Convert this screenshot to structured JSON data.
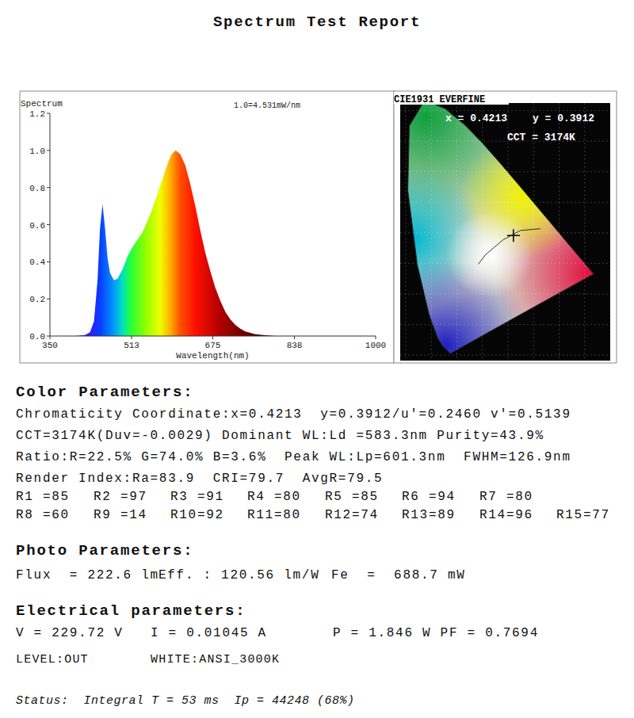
{
  "header": {
    "title": "Spectrum Test Report"
  },
  "chart_data": {
    "type": "area",
    "title": "Spectrum",
    "annotation": "1.0=4.531mW/nm",
    "x_label": "Wavelength(nm)",
    "x": [
      350,
      400,
      420,
      430,
      438,
      445,
      450,
      455,
      460,
      465,
      470,
      478,
      485,
      495,
      505,
      515,
      525,
      535,
      545,
      555,
      565,
      575,
      585,
      593,
      601,
      610,
      620,
      630,
      640,
      650,
      660,
      670,
      680,
      690,
      700,
      710,
      720,
      730,
      740,
      760,
      780,
      800,
      1000
    ],
    "values": [
      0,
      0,
      0.005,
      0.02,
      0.08,
      0.3,
      0.58,
      0.71,
      0.58,
      0.42,
      0.34,
      0.3,
      0.31,
      0.36,
      0.43,
      0.48,
      0.52,
      0.56,
      0.62,
      0.69,
      0.77,
      0.85,
      0.93,
      0.98,
      1.0,
      0.98,
      0.92,
      0.82,
      0.7,
      0.57,
      0.45,
      0.35,
      0.26,
      0.19,
      0.13,
      0.09,
      0.06,
      0.04,
      0.025,
      0.01,
      0.004,
      0,
      0
    ],
    "xlim": [
      350,
      1000
    ],
    "xticks": [
      350,
      513,
      675,
      838,
      1000
    ],
    "ylim": [
      0,
      1.2
    ],
    "yticks": [
      {
        "value": 0,
        "label": "0.0"
      },
      {
        "value": 0.2,
        "label": "0.2"
      },
      {
        "value": 0.4,
        "label": "0.4"
      },
      {
        "value": 0.6,
        "label": "0.6"
      },
      {
        "value": 0.8,
        "label": "0.8"
      },
      {
        "value": 1.0,
        "label": "1.0"
      },
      {
        "value": 1.2,
        "label": "1.2"
      }
    ],
    "grid": false
  },
  "cie": {
    "title": "CIE1931 EVERFINE",
    "x_label": "x = 0.4213",
    "y_label": "y = 0.3912",
    "cct_label": "CCT = 3174K",
    "point": [
      0.4213,
      0.3912
    ]
  },
  "color_parameters": {
    "heading": "Color Parameters:",
    "lines": [
      "Chromaticity Coordinate:x=0.4213  y=0.3912/u'=0.2460 v'=0.5139",
      "CCT=3174K(Duv=-0.0029) Dominant WL:Ld =583.3nm Purity=43.9%",
      "Ratio:R=22.5% G=74.0% B=3.6%  Peak WL:Lp=601.3nm  FWHM=126.9nm",
      "Render Index:Ra=83.9  CRI=79.7  AvgR=79.5"
    ],
    "render_rows": [
      [
        "R1 =85",
        "R2 =97",
        "R3 =91",
        "R4 =80",
        "R5 =85",
        "R6 =94",
        "R7 =80"
      ],
      [
        "R8 =60",
        "R9 =14",
        "R10=92",
        "R11=80",
        "R12=74",
        "R13=89",
        "R14=96",
        "R15=77"
      ]
    ]
  },
  "photo_parameters": {
    "heading": "Photo Parameters:",
    "items": [
      "Flux  = 222.6 lm",
      "Eff. : 120.56 lm/W",
      "Fe  =  688.7 mW"
    ]
  },
  "electrical_parameters": {
    "heading": "Electrical parameters:",
    "items": [
      "V = 229.72 V",
      "I = 0.01045 A",
      "P = 1.846 W PF = 0.7694"
    ],
    "extra": [
      "LEVEL:OUT",
      "WHITE:ANSI_3000K"
    ]
  },
  "status": "Status:  Integral T = 53 ms  Ip = 44248 (68%)"
}
